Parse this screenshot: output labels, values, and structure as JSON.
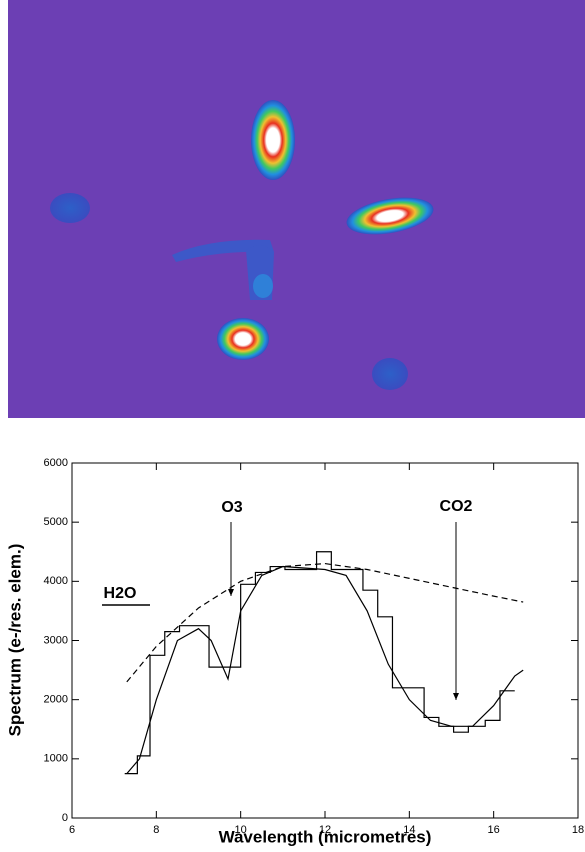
{
  "chart_data": {
    "type": "line",
    "xlabel": "Wavelength (micrometres)",
    "ylabel": "Spectrum (e-/res. elem.)",
    "xlim": [
      6,
      18
    ],
    "xticks": [
      6,
      8,
      10,
      12,
      14,
      16,
      18
    ],
    "ylim": [
      0,
      6000
    ],
    "yticks": [
      0,
      1000,
      2000,
      3000,
      4000,
      5000,
      6000
    ],
    "annotations": [
      "O3",
      "CO2",
      "H2O"
    ],
    "series": [
      {
        "style": "step",
        "color": "#000000",
        "bins": [
          7.25,
          7.55,
          7.85,
          8.2,
          8.55,
          8.9,
          9.25,
          10.0,
          10.35,
          10.7,
          11.05,
          11.45,
          11.8,
          12.15,
          12.55,
          12.9,
          13.25,
          13.6,
          14.0,
          14.35,
          14.7,
          15.05,
          15.4,
          15.8,
          16.15,
          16.5
        ],
        "values": [
          750,
          1050,
          2750,
          3150,
          3250,
          3250,
          2550,
          3950,
          4150,
          4250,
          4200,
          4200,
          4500,
          4200,
          4200,
          3850,
          3400,
          2200,
          2200,
          1700,
          1550,
          1450,
          1550,
          1650,
          2150
        ]
      },
      {
        "style": "solid",
        "color": "#000000",
        "x": [
          7.3,
          7.6,
          8.0,
          8.5,
          9.0,
          9.3,
          9.7,
          10.0,
          10.5,
          11.0,
          12.0,
          12.5,
          13.0,
          13.5,
          14.0,
          14.5,
          15.0,
          15.5,
          16.0,
          16.5,
          16.7
        ],
        "values": [
          750,
          1000,
          2000,
          3000,
          3200,
          3000,
          2350,
          3500,
          4100,
          4250,
          4200,
          4100,
          3500,
          2600,
          2000,
          1650,
          1550,
          1550,
          1900,
          2400,
          2500
        ]
      },
      {
        "style": "dashed",
        "color": "#000000",
        "x": [
          7.3,
          8,
          9,
          10,
          11,
          12,
          13,
          14,
          15,
          16,
          16.7
        ],
        "values": [
          2300,
          2900,
          3550,
          4000,
          4250,
          4300,
          4200,
          4050,
          3900,
          3750,
          3650
        ]
      }
    ]
  }
}
